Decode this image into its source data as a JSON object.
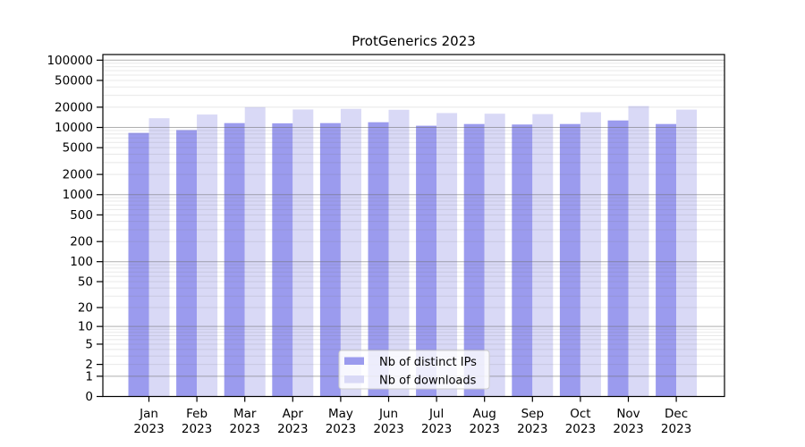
{
  "title": "ProtGenerics 2023",
  "colors": {
    "bar_distinct_ips": "#9b9bee",
    "bar_downloads": "#d9d9f6",
    "grid_major": "rgba(110,110,110,0.55)",
    "grid_minor": "rgba(110,110,110,0.16)",
    "axis": "#000000",
    "legend_background": "rgba(255,255,255,0.82)",
    "legend_border": "#cccccc",
    "background": "#ffffff"
  },
  "chart_data": {
    "type": "bar",
    "title": "ProtGenerics 2023",
    "xlabel": "",
    "ylabel": "",
    "year": "2023",
    "months": [
      "Jan",
      "Feb",
      "Mar",
      "Apr",
      "May",
      "Jun",
      "Jul",
      "Aug",
      "Sep",
      "Oct",
      "Nov",
      "Dec"
    ],
    "categories": [
      "Jan 2023",
      "Feb 2023",
      "Mar 2023",
      "Apr 2023",
      "May 2023",
      "Jun 2023",
      "Jul 2023",
      "Aug 2023",
      "Sep 2023",
      "Oct 2023",
      "Nov 2023",
      "Dec 2023"
    ],
    "series": [
      {
        "name": "Nb of distinct IPs",
        "color_key": "bar_distinct_ips",
        "values": [
          8300,
          9150,
          11600,
          11500,
          11600,
          11950,
          10600,
          11250,
          11050,
          11250,
          12700,
          11250
        ]
      },
      {
        "name": "Nb of downloads",
        "color_key": "bar_downloads",
        "values": [
          13700,
          15550,
          20050,
          18500,
          18900,
          18300,
          16350,
          16000,
          15800,
          16850,
          20800,
          18400
        ]
      }
    ],
    "y_scale": "log10(1+y)",
    "y_ticks": [
      0,
      1,
      2,
      5,
      10,
      20,
      50,
      100,
      200,
      500,
      1000,
      2000,
      5000,
      10000,
      20000,
      50000,
      100000
    ],
    "y_tick_labels": [
      "0",
      "1",
      "2",
      "5",
      "10",
      "20",
      "50",
      "100",
      "200",
      "500",
      "1000",
      "2000",
      "5000",
      "10000",
      "20000",
      "50000",
      "100000"
    ],
    "ylim": [
      0,
      121000
    ],
    "grid": true,
    "grid_on_top_of_bars": true,
    "legend_position": "inside-bottom-center"
  }
}
